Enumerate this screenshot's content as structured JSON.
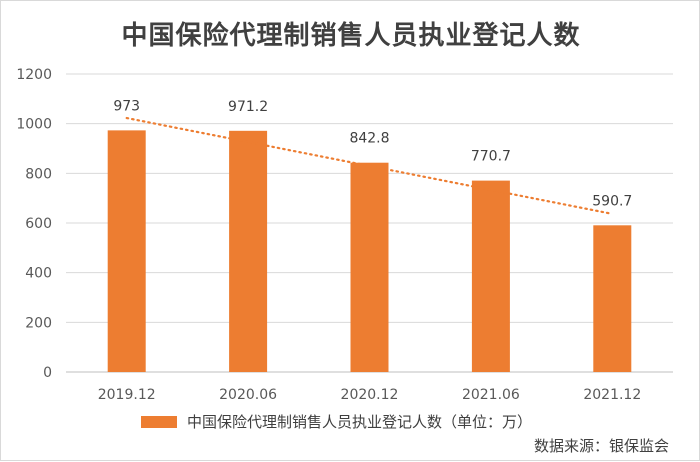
{
  "chart_data": {
    "type": "bar",
    "title": "中国保险代理制销售人员执业登记人数",
    "categories": [
      "2019.12",
      "2020.06",
      "2020.12",
      "2021.06",
      "2021.12"
    ],
    "series": [
      {
        "name": "中国保险代理制销售人员执业登记人数（单位：万）",
        "values": [
          973,
          971.2,
          842.8,
          770.7,
          590.7
        ],
        "data_labels": [
          "973",
          "971.2",
          "842.8",
          "770.7",
          "590.7"
        ],
        "color": "#ed7d31"
      }
    ],
    "trendline": {
      "type": "linear",
      "style": "dotted",
      "color": "#ed7d31"
    },
    "ylim": [
      0,
      1200
    ],
    "yticks": [
      0,
      200,
      400,
      600,
      800,
      1000,
      1200
    ],
    "grid": true,
    "legend_position": "bottom",
    "xlabel": "",
    "ylabel": ""
  },
  "source_note": "数据来源：银保监会"
}
